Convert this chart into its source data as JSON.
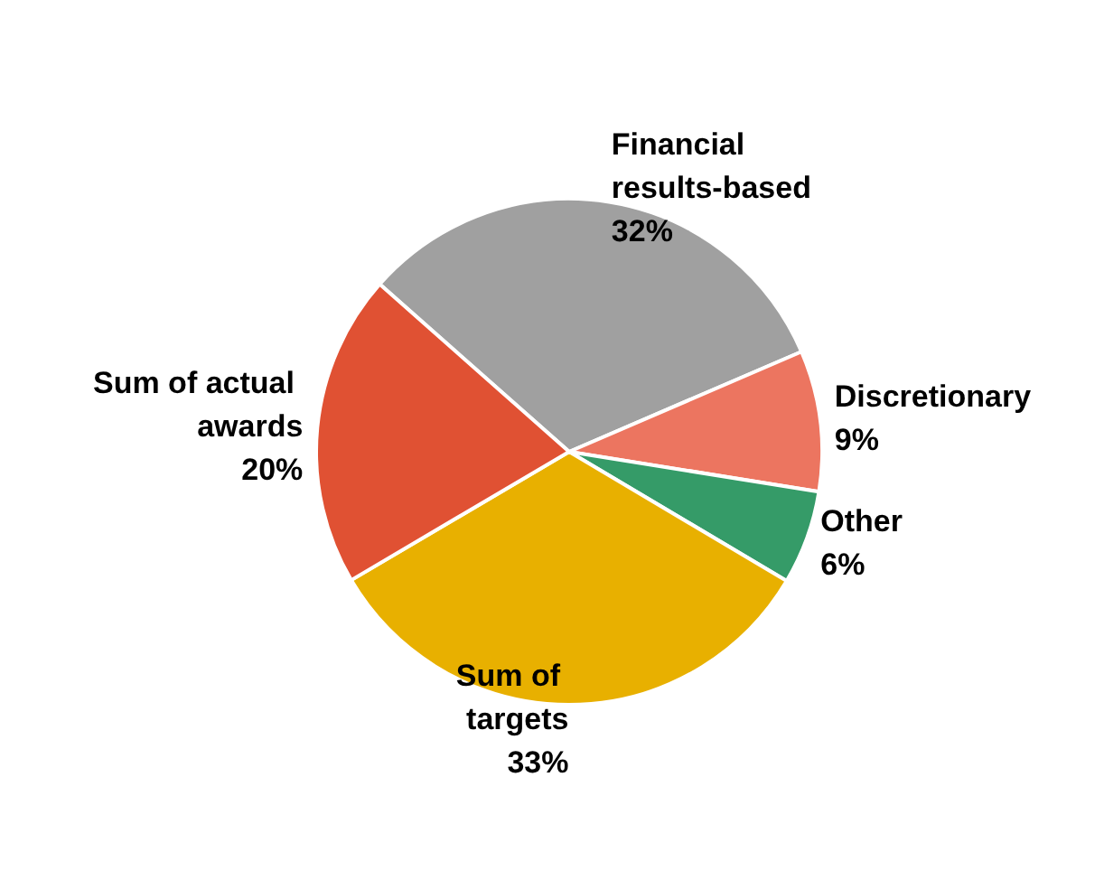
{
  "chart_data": {
    "type": "pie",
    "categories": [
      "Financial results-based",
      "Discretionary",
      "Other",
      "Sum of targets",
      "Sum of actual awards"
    ],
    "values": [
      32,
      9,
      6,
      33,
      20
    ],
    "value_labels": [
      "32%",
      "9%",
      "6%",
      "33%",
      "20%"
    ],
    "colors": [
      "#a0a0a0",
      "#ec7560",
      "#359b68",
      "#e8b000",
      "#e05133"
    ],
    "legend": false
  }
}
